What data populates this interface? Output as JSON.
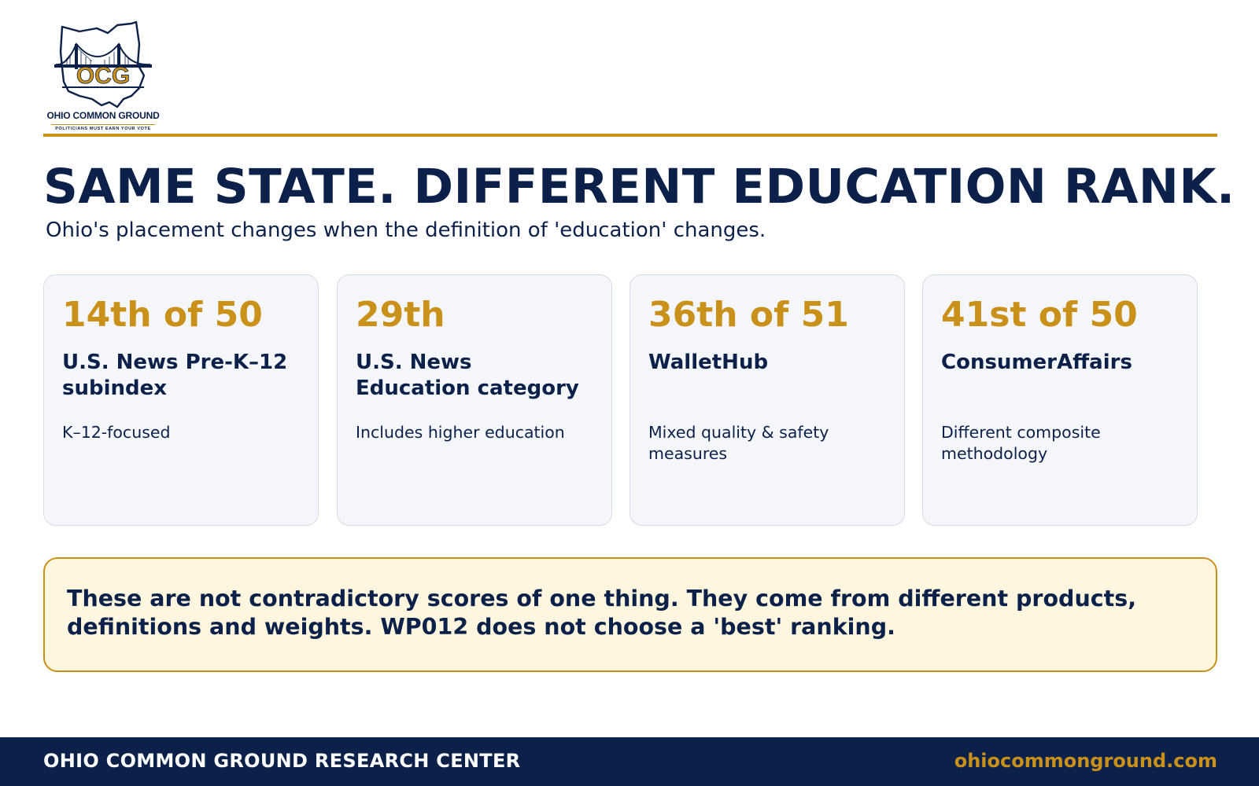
{
  "logo": {
    "monogram": "OCG",
    "name": "OHIO COMMON GROUND",
    "tagline": "POLITICIANS MUST EARN YOUR VOTE"
  },
  "headline": "SAME STATE. DIFFERENT EDUCATION RANK.",
  "subhead": "Ohio's placement changes when the definition of 'education' changes.",
  "cards": [
    {
      "rank": "14th of 50",
      "title": "U.S. News Pre-K–12 subindex",
      "note": "K–12-focused"
    },
    {
      "rank": "29th",
      "title": "U.S. News Education category",
      "note": "Includes higher education"
    },
    {
      "rank": "36th of 51",
      "title": "WalletHub",
      "note": "Mixed quality & safety measures"
    },
    {
      "rank": "41st of 50",
      "title": "ConsumerAffairs",
      "note": "Different composite methodology"
    }
  ],
  "callout": "These are not contradictory scores of one thing. They come from different products, definitions and weights. WP012 does not choose a 'best' ranking.",
  "footer": {
    "organization": "OHIO COMMON GROUND RESEARCH CENTER",
    "website": "ohiocommonground.com"
  },
  "colors": {
    "navy": "#0b2149",
    "gold": "#c9901a",
    "card_bg": "#f4f6fa",
    "callout_bg": "#fff6df"
  }
}
